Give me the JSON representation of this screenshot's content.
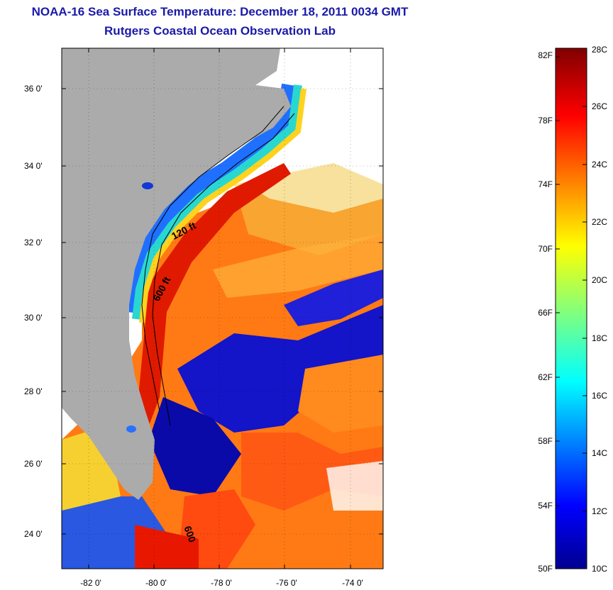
{
  "title": "NOAA-16 Sea Surface Temperature:  December 18, 2011 0034 GMT",
  "subtitle": "Rutgers Coastal Ocean Observation Lab",
  "map": {
    "lat_ticks": [
      "36 0'",
      "34 0'",
      "32 0'",
      "30 0'",
      "28 0'",
      "26 0'",
      "24 0'"
    ],
    "lon_ticks": [
      "-82 0'",
      "-80 0'",
      "-78 0'",
      "-76 0'",
      "-74 0'"
    ],
    "contour_labels": [
      "120 ft",
      "600 ft",
      "600"
    ],
    "colors": {
      "land": "#ababab",
      "background": "#ffffff",
      "cloud": "#ffffff"
    }
  },
  "colorbar": {
    "fahrenheit": [
      "82F",
      "78F",
      "74F",
      "70F",
      "66F",
      "62F",
      "58F",
      "54F",
      "50F"
    ],
    "celsius": [
      "28C",
      "26C",
      "24C",
      "22C",
      "20C",
      "18C",
      "16C",
      "14C",
      "12C",
      "10C"
    ],
    "range_c": [
      10,
      28
    ]
  }
}
